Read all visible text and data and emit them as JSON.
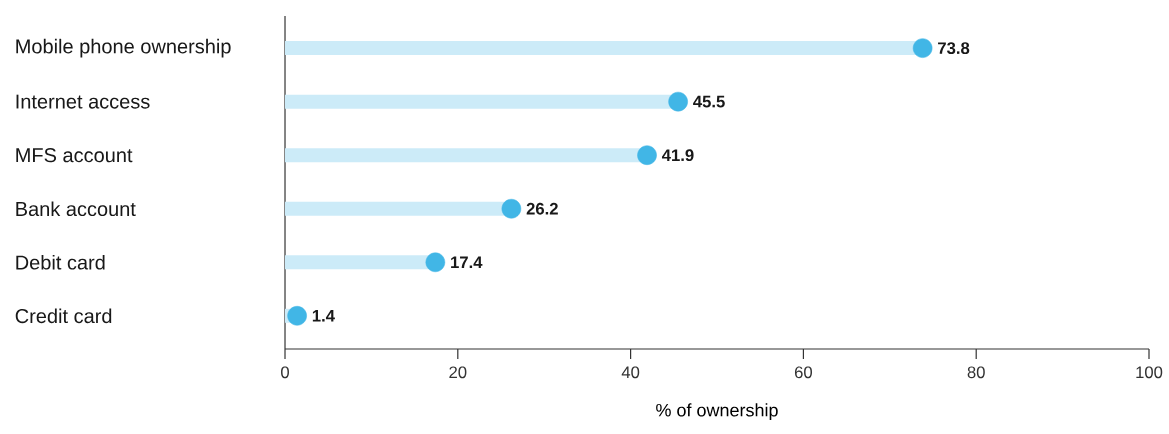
{
  "chart_data": {
    "type": "lollipop",
    "orientation": "horizontal",
    "xlabel": "% of ownership",
    "categories": [
      "Mobile phone ownership",
      "Internet access",
      "MFS account",
      "Bank account",
      "Debit card",
      "Credit card"
    ],
    "values": [
      73.8,
      45.5,
      41.9,
      26.2,
      17.4,
      1.4
    ],
    "color": "#41b6e6",
    "xlim": [
      0,
      100
    ],
    "xticks": [
      0,
      20,
      40,
      60,
      80,
      100
    ],
    "data_labels": true,
    "grid": false
  }
}
